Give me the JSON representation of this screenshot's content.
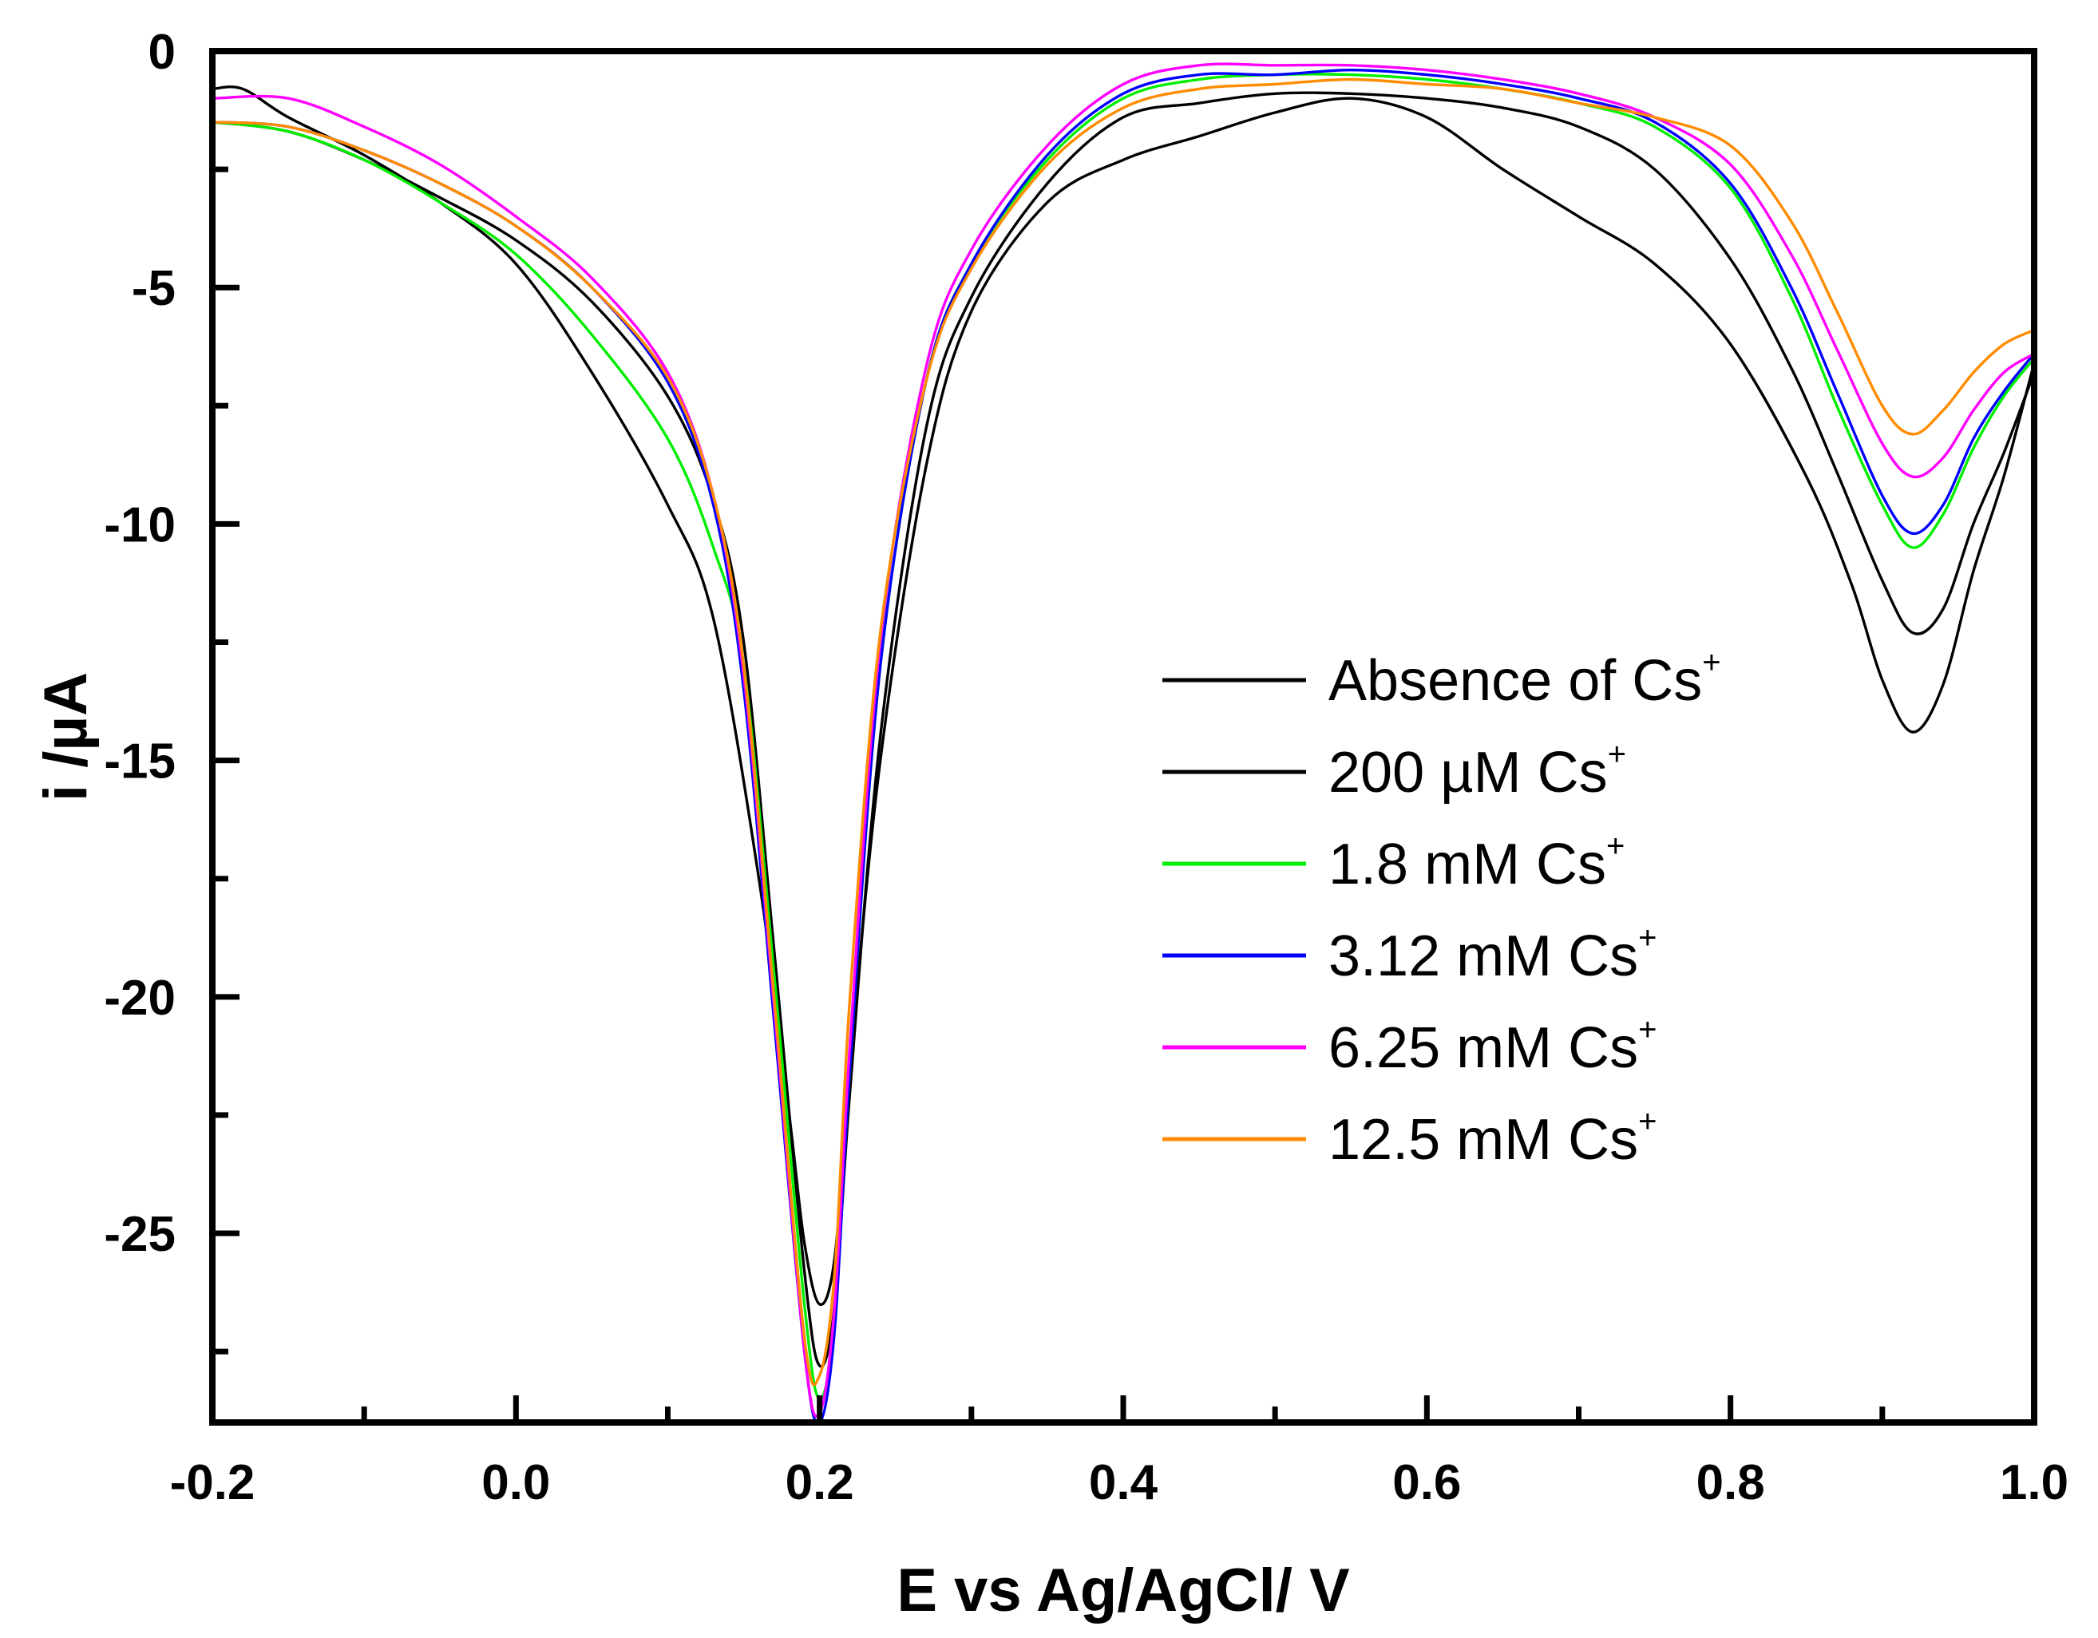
{
  "chart_data": {
    "type": "line",
    "title": "",
    "xlabel": "E vs Ag/AgCl/ V",
    "ylabel": "i /µA",
    "xlim": [
      -0.2,
      1.0
    ],
    "ylim": [
      -29,
      0
    ],
    "xticks": [
      -0.2,
      0.0,
      0.2,
      0.4,
      0.6,
      0.8,
      1.0
    ],
    "xtick_labels": [
      "-0.2",
      "0.0",
      "0.2",
      "0.4",
      "0.6",
      "0.8",
      "1.0"
    ],
    "yticks": [
      0,
      -5,
      -10,
      -15,
      -20,
      -25
    ],
    "ytick_labels": [
      "0",
      "-5",
      "-10",
      "-15",
      "-20",
      "-25"
    ],
    "grid": false,
    "legend_position": "right-center",
    "series": [
      {
        "name": "Absence of Cs",
        "superscript": "+",
        "color": "#000000",
        "x": [
          -0.2,
          -0.18,
          -0.15,
          -0.1,
          -0.05,
          0.0,
          0.05,
          0.1,
          0.13,
          0.16,
          0.18,
          0.19,
          0.2,
          0.21,
          0.22,
          0.24,
          0.27,
          0.3,
          0.35,
          0.4,
          0.45,
          0.5,
          0.55,
          0.6,
          0.65,
          0.7,
          0.75,
          0.8,
          0.85,
          0.88,
          0.9,
          0.92,
          0.94,
          0.96,
          0.98,
          1.0
        ],
        "y": [
          -0.8,
          -0.8,
          -1.4,
          -2.2,
          -3.2,
          -4.5,
          -6.8,
          -9.6,
          -12.0,
          -17.5,
          -22.5,
          -25.2,
          -26.5,
          -25.5,
          -21.5,
          -15.0,
          -8.8,
          -5.5,
          -3.2,
          -2.3,
          -1.8,
          -1.3,
          -1.0,
          -1.4,
          -2.5,
          -3.5,
          -4.5,
          -6.2,
          -9.0,
          -11.3,
          -13.3,
          -14.4,
          -13.4,
          -11.0,
          -9.0,
          -6.6
        ]
      },
      {
        "name": "200 µM Cs",
        "superscript": "+",
        "color": "#000000",
        "x": [
          -0.2,
          -0.15,
          -0.1,
          -0.05,
          0.0,
          0.05,
          0.1,
          0.13,
          0.15,
          0.17,
          0.19,
          0.2,
          0.21,
          0.22,
          0.24,
          0.27,
          0.3,
          0.35,
          0.4,
          0.45,
          0.5,
          0.55,
          0.6,
          0.65,
          0.7,
          0.75,
          0.8,
          0.84,
          0.87,
          0.9,
          0.92,
          0.94,
          0.96,
          0.98,
          1.0
        ],
        "y": [
          -1.5,
          -1.7,
          -2.3,
          -3.1,
          -4.0,
          -5.3,
          -7.3,
          -9.5,
          -12.5,
          -19.0,
          -25.8,
          -27.8,
          -26.5,
          -22.0,
          -14.5,
          -8.0,
          -5.2,
          -2.8,
          -1.4,
          -1.1,
          -0.9,
          -0.9,
          -1.0,
          -1.2,
          -1.6,
          -2.5,
          -4.4,
          -6.7,
          -8.9,
          -11.2,
          -12.3,
          -11.8,
          -10.0,
          -8.5,
          -6.8
        ]
      },
      {
        "name": "1.8 mM Cs",
        "superscript": "+",
        "color": "#00ee00",
        "x": [
          -0.2,
          -0.15,
          -0.1,
          -0.05,
          0.0,
          0.05,
          0.1,
          0.13,
          0.15,
          0.17,
          0.19,
          0.2,
          0.21,
          0.22,
          0.24,
          0.27,
          0.3,
          0.35,
          0.4,
          0.45,
          0.5,
          0.55,
          0.6,
          0.65,
          0.7,
          0.75,
          0.8,
          0.84,
          0.87,
          0.9,
          0.92,
          0.94,
          0.96,
          0.98,
          1.0
        ],
        "y": [
          -1.5,
          -1.7,
          -2.3,
          -3.2,
          -4.3,
          -6.0,
          -8.2,
          -10.5,
          -13.0,
          -19.5,
          -26.5,
          -28.5,
          -26.8,
          -21.5,
          -13.0,
          -7.0,
          -4.5,
          -2.3,
          -1.0,
          -0.6,
          -0.5,
          -0.5,
          -0.6,
          -0.8,
          -1.1,
          -1.6,
          -2.9,
          -5.2,
          -7.5,
          -9.6,
          -10.5,
          -9.8,
          -8.4,
          -7.3,
          -6.5
        ]
      },
      {
        "name": "3.12 mM Cs",
        "superscript": "+",
        "color": "#0000ff",
        "x": [
          -0.2,
          -0.15,
          -0.1,
          -0.05,
          0.0,
          0.05,
          0.1,
          0.13,
          0.15,
          0.17,
          0.19,
          0.2,
          0.21,
          0.22,
          0.24,
          0.27,
          0.3,
          0.35,
          0.4,
          0.45,
          0.5,
          0.55,
          0.6,
          0.65,
          0.7,
          0.75,
          0.8,
          0.84,
          0.87,
          0.9,
          0.92,
          0.94,
          0.96,
          0.98,
          1.0
        ],
        "y": [
          -1.5,
          -1.6,
          -2.1,
          -2.8,
          -3.7,
          -5.0,
          -7.0,
          -9.6,
          -13.5,
          -20.5,
          -27.5,
          -29.0,
          -27.0,
          -21.5,
          -13.0,
          -7.0,
          -4.5,
          -2.2,
          -0.9,
          -0.5,
          -0.5,
          -0.4,
          -0.5,
          -0.7,
          -1.0,
          -1.5,
          -2.8,
          -5.0,
          -7.2,
          -9.4,
          -10.2,
          -9.6,
          -8.2,
          -7.2,
          -6.4
        ]
      },
      {
        "name": "6.25 mM Cs",
        "superscript": "+",
        "color": "#ff00ff",
        "x": [
          -0.2,
          -0.15,
          -0.1,
          -0.05,
          0.0,
          0.05,
          0.1,
          0.13,
          0.15,
          0.17,
          0.19,
          0.2,
          0.21,
          0.22,
          0.24,
          0.27,
          0.3,
          0.35,
          0.4,
          0.45,
          0.5,
          0.55,
          0.6,
          0.65,
          0.7,
          0.75,
          0.8,
          0.84,
          0.87,
          0.9,
          0.92,
          0.94,
          0.96,
          0.98,
          1.0
        ],
        "y": [
          -1.0,
          -1.0,
          -1.6,
          -2.4,
          -3.5,
          -4.8,
          -6.8,
          -9.4,
          -13.2,
          -20.2,
          -27.5,
          -28.8,
          -26.5,
          -21.0,
          -12.5,
          -6.7,
          -4.2,
          -2.0,
          -0.7,
          -0.3,
          -0.3,
          -0.3,
          -0.4,
          -0.6,
          -0.9,
          -1.4,
          -2.4,
          -4.3,
          -6.3,
          -8.3,
          -9.0,
          -8.6,
          -7.6,
          -6.8,
          -6.4
        ]
      },
      {
        "name": "12.5 mM Cs",
        "superscript": "+",
        "color": "#ff8c00",
        "x": [
          -0.2,
          -0.15,
          -0.1,
          -0.05,
          0.0,
          0.05,
          0.1,
          0.13,
          0.15,
          0.17,
          0.19,
          0.2,
          0.21,
          0.22,
          0.24,
          0.27,
          0.3,
          0.35,
          0.4,
          0.45,
          0.5,
          0.55,
          0.6,
          0.65,
          0.7,
          0.75,
          0.8,
          0.84,
          0.87,
          0.9,
          0.92,
          0.94,
          0.96,
          0.98,
          1.0
        ],
        "y": [
          -1.5,
          -1.6,
          -2.1,
          -2.8,
          -3.7,
          -5.0,
          -6.9,
          -9.4,
          -13.0,
          -20.0,
          -27.2,
          -28.0,
          -25.8,
          -20.0,
          -12.3,
          -7.0,
          -4.6,
          -2.4,
          -1.2,
          -0.8,
          -0.7,
          -0.6,
          -0.7,
          -0.8,
          -1.1,
          -1.4,
          -2.0,
          -3.6,
          -5.5,
          -7.5,
          -8.1,
          -7.6,
          -6.8,
          -6.2,
          -5.9
        ]
      }
    ]
  }
}
